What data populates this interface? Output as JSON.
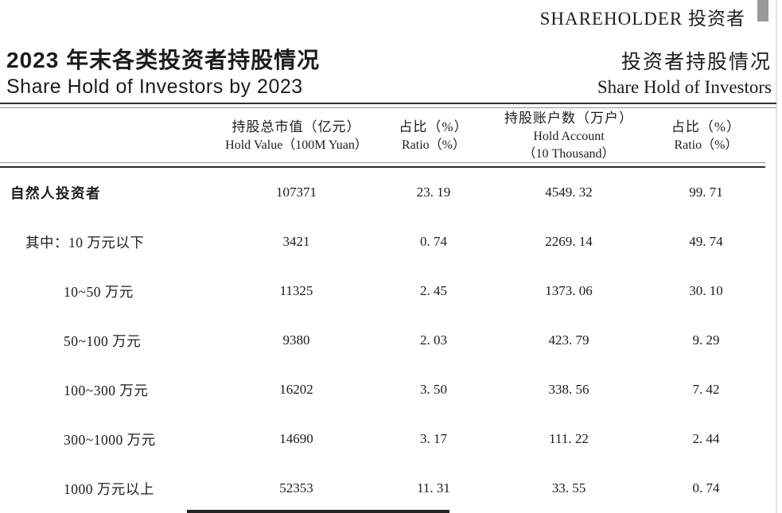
{
  "masthead": {
    "text": "SHAREHOLDER 投资者"
  },
  "title": {
    "left_cn": "2023 年末各类投资者持股情况",
    "left_en": "Share Hold of Investors by 2023",
    "right_cn": "投资者持股情况",
    "right_en": "Share Hold of Investors"
  },
  "colors": {
    "text": "#1c1c1c",
    "masthead_bar": "#9a9a9a",
    "rule": "#2f2f2f"
  },
  "table": {
    "columns": [
      {
        "cn": "持股总市值（亿元）",
        "en": "Hold Value（100M Yuan）"
      },
      {
        "cn": "占比（%）",
        "en": "Ratio（%）"
      },
      {
        "cn": "持股账户数（万户）",
        "en": "Hold Account",
        "en2": "（10 Thousand）"
      },
      {
        "cn": "占比（%）",
        "en": "Ratio（%）"
      }
    ],
    "rows": [
      {
        "label": "自然人投资者",
        "values": [
          "107371",
          "23. 19",
          "4549. 32",
          "99. 71"
        ]
      },
      {
        "label": "其中：10 万元以下",
        "values": [
          "3421",
          "0. 74",
          "2269. 14",
          "49. 74"
        ]
      },
      {
        "label": "10~50 万元",
        "values": [
          "11325",
          "2. 45",
          "1373. 06",
          "30. 10"
        ]
      },
      {
        "label": "50~100 万元",
        "values": [
          "9380",
          "2. 03",
          "423. 79",
          "9. 29"
        ]
      },
      {
        "label": "100~300 万元",
        "values": [
          "16202",
          "3. 50",
          "338. 56",
          "7. 42"
        ]
      },
      {
        "label": "300~1000 万元",
        "values": [
          "14690",
          "3. 17",
          "111. 22",
          "2. 44"
        ]
      },
      {
        "label": "1000 万元以上",
        "values": [
          "52353",
          "11. 31",
          "33. 55",
          "0. 74"
        ]
      }
    ]
  }
}
